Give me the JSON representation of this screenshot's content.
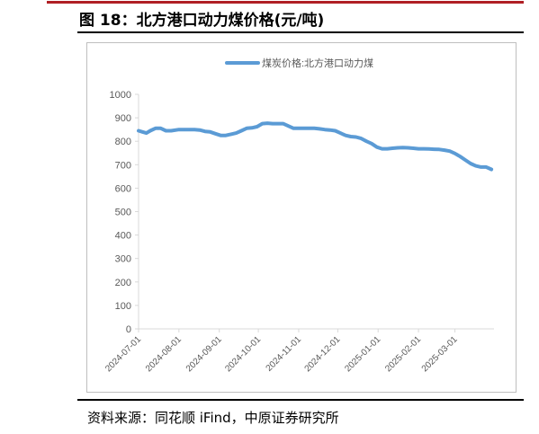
{
  "figure": {
    "title": "图 18：北方港口动力煤价格(元/吨)",
    "source": "资料来源：同花顺 iFind，中原证券研究所"
  },
  "colors": {
    "series": "#5b9bd5",
    "accent_rule": "#b01f24",
    "axis": "#d9d9d9",
    "text": "#595959"
  },
  "chart_data": {
    "type": "line",
    "title": "",
    "xlabel": "",
    "ylabel": "",
    "ylim": [
      0,
      1000
    ],
    "yticks": [
      "0",
      "100",
      "200",
      "300",
      "400",
      "500",
      "600",
      "700",
      "800",
      "900",
      "1000"
    ],
    "grid": false,
    "legend_position": "top-center",
    "x_start": "2024-07-01",
    "x_end": "2025-03-31",
    "xticks": [
      "2024-07-01",
      "2024-08-01",
      "2024-09-01",
      "2024-10-01",
      "2024-11-01",
      "2024-12-01",
      "2025-01-01",
      "2025-02-01",
      "2025-03-01"
    ],
    "series": [
      {
        "name": "煤炭价格:北方港口动力煤",
        "x": [
          "2024-07-01",
          "2024-07-04",
          "2024-07-07",
          "2024-07-10",
          "2024-07-14",
          "2024-07-18",
          "2024-07-22",
          "2024-07-26",
          "2024-08-01",
          "2024-08-05",
          "2024-08-09",
          "2024-08-13",
          "2024-08-17",
          "2024-08-21",
          "2024-08-25",
          "2024-08-29",
          "2024-09-02",
          "2024-09-06",
          "2024-09-10",
          "2024-09-14",
          "2024-09-18",
          "2024-09-22",
          "2024-09-26",
          "2024-09-30",
          "2024-10-04",
          "2024-10-08",
          "2024-10-12",
          "2024-10-16",
          "2024-10-20",
          "2024-10-24",
          "2024-10-28",
          "2024-11-01",
          "2024-11-05",
          "2024-11-09",
          "2024-11-13",
          "2024-11-17",
          "2024-11-21",
          "2024-11-25",
          "2024-11-29",
          "2024-12-03",
          "2024-12-07",
          "2024-12-11",
          "2024-12-15",
          "2024-12-19",
          "2024-12-23",
          "2024-12-27",
          "2024-12-31",
          "2025-01-04",
          "2025-01-08",
          "2025-01-12",
          "2025-01-16",
          "2025-01-20",
          "2025-01-24",
          "2025-01-28",
          "2025-02-01",
          "2025-02-05",
          "2025-02-09",
          "2025-02-13",
          "2025-02-17",
          "2025-02-21",
          "2025-02-25",
          "2025-03-01",
          "2025-03-05",
          "2025-03-09",
          "2025-03-13",
          "2025-03-17",
          "2025-03-21",
          "2025-03-25",
          "2025-03-29"
        ],
        "values": [
          845,
          840,
          835,
          845,
          855,
          855,
          845,
          845,
          850,
          850,
          850,
          850,
          848,
          842,
          840,
          832,
          825,
          825,
          830,
          835,
          845,
          855,
          857,
          862,
          875,
          877,
          875,
          875,
          875,
          865,
          855,
          855,
          855,
          855,
          855,
          853,
          850,
          848,
          845,
          835,
          825,
          820,
          818,
          812,
          800,
          790,
          775,
          768,
          768,
          770,
          772,
          773,
          772,
          770,
          768,
          768,
          767,
          766,
          765,
          762,
          758,
          748,
          735,
          720,
          705,
          695,
          690,
          690,
          680
        ]
      }
    ]
  }
}
